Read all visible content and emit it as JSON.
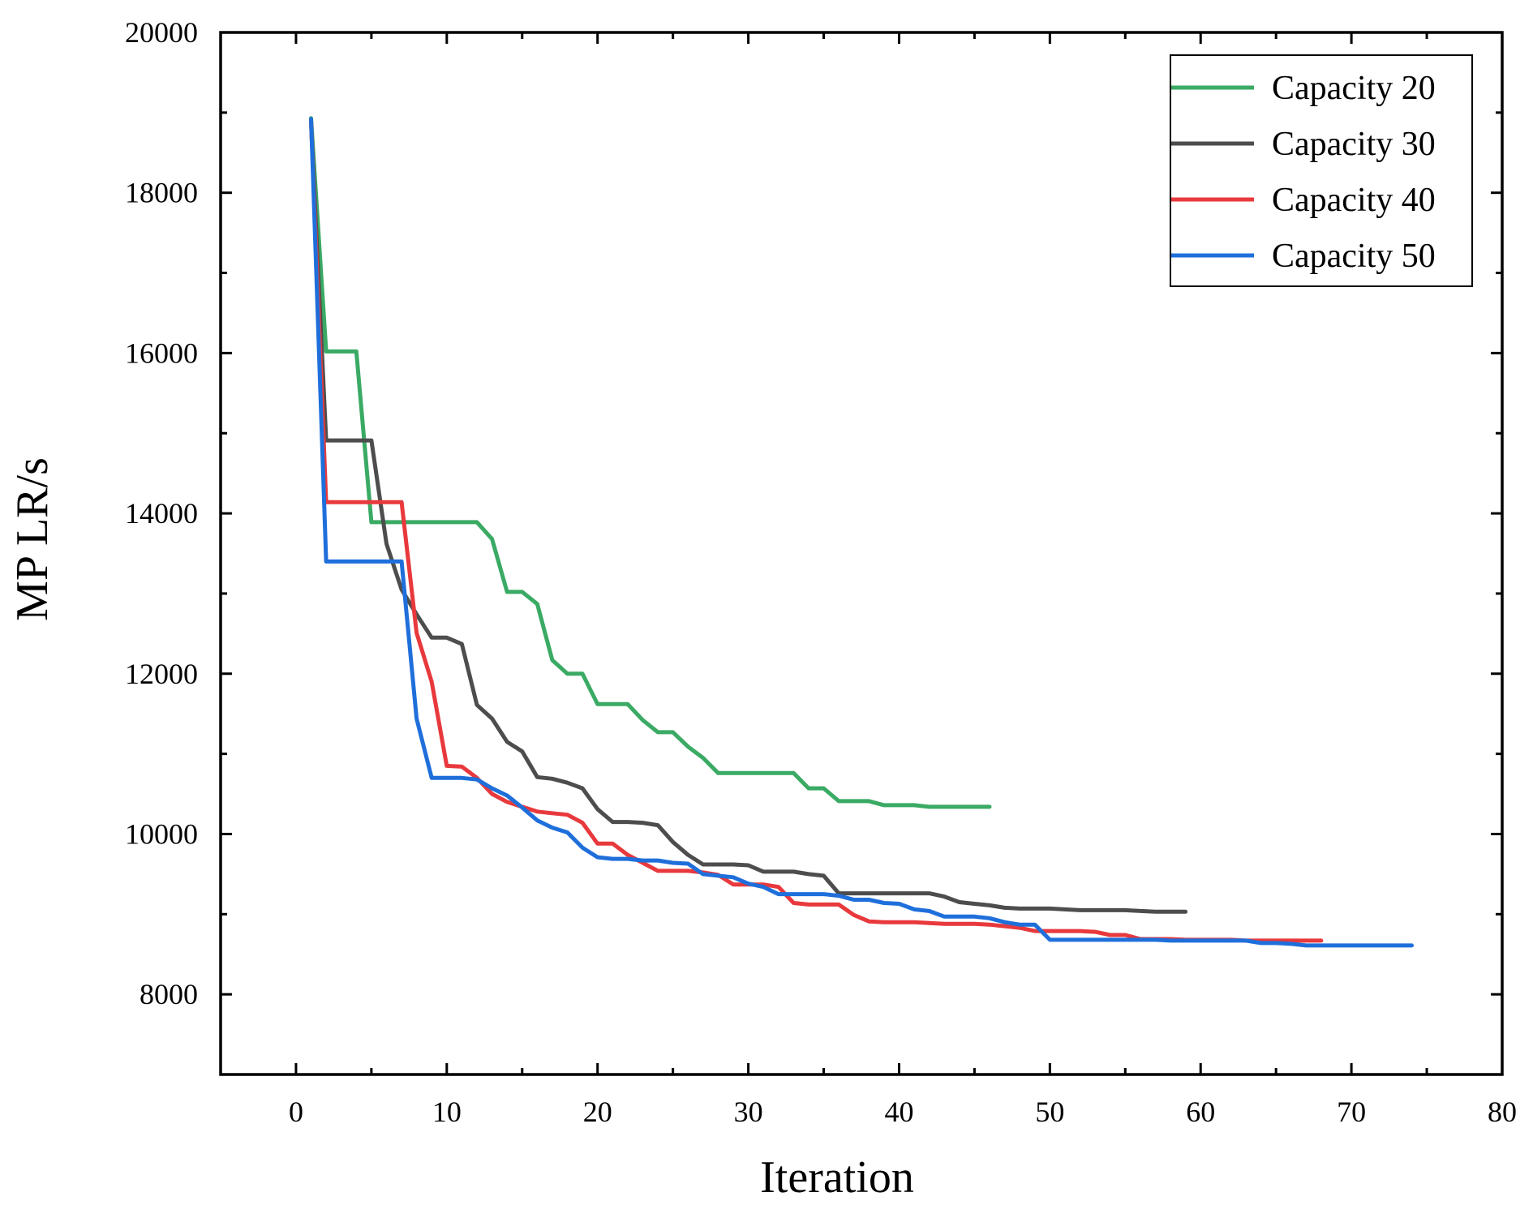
{
  "chart_data": {
    "type": "line",
    "title": "",
    "xlabel": "Iteration",
    "ylabel": "MP LR/s",
    "xlim": [
      -5,
      80
    ],
    "ylim": [
      7000,
      20000
    ],
    "x_ticks": [
      0,
      10,
      20,
      30,
      40,
      50,
      60,
      70,
      80
    ],
    "y_ticks": [
      8000,
      10000,
      12000,
      14000,
      16000,
      18000,
      20000
    ],
    "x_tick_labels": [
      "0",
      "10",
      "20",
      "30",
      "40",
      "50",
      "60",
      "70",
      "80"
    ],
    "y_tick_labels": [
      "8000",
      "10000",
      "12000",
      "14000",
      "16000",
      "18000",
      "20000"
    ],
    "grid": false,
    "legend_position": "top-right",
    "series": [
      {
        "name": "Capacity 20",
        "color": "#3aaa64",
        "points": [
          [
            1,
            18930
          ],
          [
            2,
            16020
          ],
          [
            3,
            16020
          ],
          [
            4,
            16020
          ],
          [
            5,
            13890
          ],
          [
            6,
            13890
          ],
          [
            7,
            13890
          ],
          [
            8,
            13890
          ],
          [
            9,
            13890
          ],
          [
            10,
            13890
          ],
          [
            11,
            13890
          ],
          [
            12,
            13890
          ],
          [
            13,
            13680
          ],
          [
            14,
            13020
          ],
          [
            15,
            13020
          ],
          [
            16,
            12870
          ],
          [
            17,
            12170
          ],
          [
            18,
            12000
          ],
          [
            19,
            12000
          ],
          [
            20,
            11620
          ],
          [
            21,
            11620
          ],
          [
            22,
            11620
          ],
          [
            23,
            11420
          ],
          [
            24,
            11270
          ],
          [
            25,
            11270
          ],
          [
            26,
            11090
          ],
          [
            27,
            10950
          ],
          [
            28,
            10760
          ],
          [
            29,
            10760
          ],
          [
            30,
            10760
          ],
          [
            31,
            10760
          ],
          [
            32,
            10760
          ],
          [
            33,
            10760
          ],
          [
            34,
            10570
          ],
          [
            35,
            10570
          ],
          [
            36,
            10410
          ],
          [
            37,
            10410
          ],
          [
            38,
            10410
          ],
          [
            39,
            10360
          ],
          [
            40,
            10360
          ],
          [
            41,
            10360
          ],
          [
            42,
            10340
          ],
          [
            43,
            10340
          ],
          [
            44,
            10340
          ],
          [
            45,
            10340
          ],
          [
            46,
            10340
          ]
        ]
      },
      {
        "name": "Capacity 30",
        "color": "#4d4d4d",
        "points": [
          [
            1,
            18880
          ],
          [
            2,
            14910
          ],
          [
            3,
            14910
          ],
          [
            4,
            14910
          ],
          [
            5,
            14910
          ],
          [
            6,
            13620
          ],
          [
            7,
            13050
          ],
          [
            8,
            12740
          ],
          [
            9,
            12450
          ],
          [
            10,
            12450
          ],
          [
            11,
            12370
          ],
          [
            12,
            11610
          ],
          [
            13,
            11440
          ],
          [
            14,
            11150
          ],
          [
            15,
            11030
          ],
          [
            16,
            10710
          ],
          [
            17,
            10690
          ],
          [
            18,
            10640
          ],
          [
            19,
            10570
          ],
          [
            20,
            10310
          ],
          [
            21,
            10150
          ],
          [
            22,
            10150
          ],
          [
            23,
            10140
          ],
          [
            24,
            10110
          ],
          [
            25,
            9900
          ],
          [
            26,
            9740
          ],
          [
            27,
            9620
          ],
          [
            28,
            9620
          ],
          [
            29,
            9620
          ],
          [
            30,
            9610
          ],
          [
            31,
            9530
          ],
          [
            32,
            9530
          ],
          [
            33,
            9530
          ],
          [
            34,
            9500
          ],
          [
            35,
            9480
          ],
          [
            36,
            9260
          ],
          [
            37,
            9260
          ],
          [
            38,
            9260
          ],
          [
            39,
            9260
          ],
          [
            40,
            9260
          ],
          [
            41,
            9260
          ],
          [
            42,
            9260
          ],
          [
            43,
            9220
          ],
          [
            44,
            9150
          ],
          [
            45,
            9130
          ],
          [
            46,
            9110
          ],
          [
            47,
            9080
          ],
          [
            48,
            9070
          ],
          [
            49,
            9070
          ],
          [
            50,
            9070
          ],
          [
            51,
            9060
          ],
          [
            52,
            9050
          ],
          [
            53,
            9050
          ],
          [
            54,
            9050
          ],
          [
            55,
            9050
          ],
          [
            56,
            9040
          ],
          [
            57,
            9030
          ],
          [
            58,
            9030
          ],
          [
            59,
            9030
          ]
        ]
      },
      {
        "name": "Capacity 40",
        "color": "#e8393d",
        "points": [
          [
            1,
            18900
          ],
          [
            2,
            14140
          ],
          [
            3,
            14140
          ],
          [
            4,
            14140
          ],
          [
            5,
            14140
          ],
          [
            6,
            14140
          ],
          [
            7,
            14140
          ],
          [
            8,
            12510
          ],
          [
            9,
            11900
          ],
          [
            10,
            10850
          ],
          [
            11,
            10840
          ],
          [
            12,
            10700
          ],
          [
            13,
            10500
          ],
          [
            14,
            10400
          ],
          [
            15,
            10340
          ],
          [
            16,
            10280
          ],
          [
            17,
            10260
          ],
          [
            18,
            10240
          ],
          [
            19,
            10140
          ],
          [
            20,
            9880
          ],
          [
            21,
            9880
          ],
          [
            22,
            9740
          ],
          [
            23,
            9640
          ],
          [
            24,
            9540
          ],
          [
            25,
            9540
          ],
          [
            26,
            9540
          ],
          [
            27,
            9520
          ],
          [
            28,
            9490
          ],
          [
            29,
            9370
          ],
          [
            30,
            9370
          ],
          [
            31,
            9370
          ],
          [
            32,
            9340
          ],
          [
            33,
            9140
          ],
          [
            34,
            9120
          ],
          [
            35,
            9120
          ],
          [
            36,
            9120
          ],
          [
            37,
            8990
          ],
          [
            38,
            8910
          ],
          [
            39,
            8900
          ],
          [
            40,
            8900
          ],
          [
            41,
            8900
          ],
          [
            42,
            8890
          ],
          [
            43,
            8880
          ],
          [
            44,
            8880
          ],
          [
            45,
            8880
          ],
          [
            46,
            8870
          ],
          [
            47,
            8850
          ],
          [
            48,
            8830
          ],
          [
            49,
            8790
          ],
          [
            50,
            8790
          ],
          [
            51,
            8790
          ],
          [
            52,
            8790
          ],
          [
            53,
            8780
          ],
          [
            54,
            8740
          ],
          [
            55,
            8740
          ],
          [
            56,
            8690
          ],
          [
            57,
            8690
          ],
          [
            58,
            8690
          ],
          [
            59,
            8680
          ],
          [
            60,
            8680
          ],
          [
            61,
            8680
          ],
          [
            62,
            8680
          ],
          [
            63,
            8670
          ],
          [
            64,
            8670
          ],
          [
            65,
            8670
          ],
          [
            66,
            8670
          ],
          [
            67,
            8670
          ],
          [
            68,
            8670
          ]
        ]
      },
      {
        "name": "Capacity 50",
        "color": "#1f6fdb",
        "points": [
          [
            1,
            18920
          ],
          [
            2,
            13400
          ],
          [
            3,
            13400
          ],
          [
            4,
            13400
          ],
          [
            5,
            13400
          ],
          [
            6,
            13400
          ],
          [
            7,
            13400
          ],
          [
            8,
            11440
          ],
          [
            9,
            10700
          ],
          [
            10,
            10700
          ],
          [
            11,
            10700
          ],
          [
            12,
            10680
          ],
          [
            13,
            10570
          ],
          [
            14,
            10480
          ],
          [
            15,
            10330
          ],
          [
            16,
            10170
          ],
          [
            17,
            10080
          ],
          [
            18,
            10020
          ],
          [
            19,
            9830
          ],
          [
            20,
            9710
          ],
          [
            21,
            9690
          ],
          [
            22,
            9690
          ],
          [
            23,
            9670
          ],
          [
            24,
            9670
          ],
          [
            25,
            9640
          ],
          [
            26,
            9630
          ],
          [
            27,
            9500
          ],
          [
            28,
            9480
          ],
          [
            29,
            9460
          ],
          [
            30,
            9380
          ],
          [
            31,
            9340
          ],
          [
            32,
            9250
          ],
          [
            33,
            9250
          ],
          [
            34,
            9250
          ],
          [
            35,
            9250
          ],
          [
            36,
            9230
          ],
          [
            37,
            9180
          ],
          [
            38,
            9180
          ],
          [
            39,
            9140
          ],
          [
            40,
            9130
          ],
          [
            41,
            9060
          ],
          [
            42,
            9040
          ],
          [
            43,
            8970
          ],
          [
            44,
            8970
          ],
          [
            45,
            8970
          ],
          [
            46,
            8950
          ],
          [
            47,
            8900
          ],
          [
            48,
            8870
          ],
          [
            49,
            8870
          ],
          [
            50,
            8680
          ],
          [
            51,
            8680
          ],
          [
            52,
            8680
          ],
          [
            53,
            8680
          ],
          [
            54,
            8680
          ],
          [
            55,
            8680
          ],
          [
            56,
            8680
          ],
          [
            57,
            8680
          ],
          [
            58,
            8670
          ],
          [
            59,
            8670
          ],
          [
            60,
            8670
          ],
          [
            61,
            8670
          ],
          [
            62,
            8670
          ],
          [
            63,
            8670
          ],
          [
            64,
            8640
          ],
          [
            65,
            8640
          ],
          [
            66,
            8630
          ],
          [
            67,
            8610
          ],
          [
            68,
            8610
          ],
          [
            69,
            8610
          ],
          [
            70,
            8610
          ],
          [
            71,
            8610
          ],
          [
            72,
            8610
          ],
          [
            73,
            8610
          ],
          [
            74,
            8610
          ]
        ]
      }
    ]
  }
}
